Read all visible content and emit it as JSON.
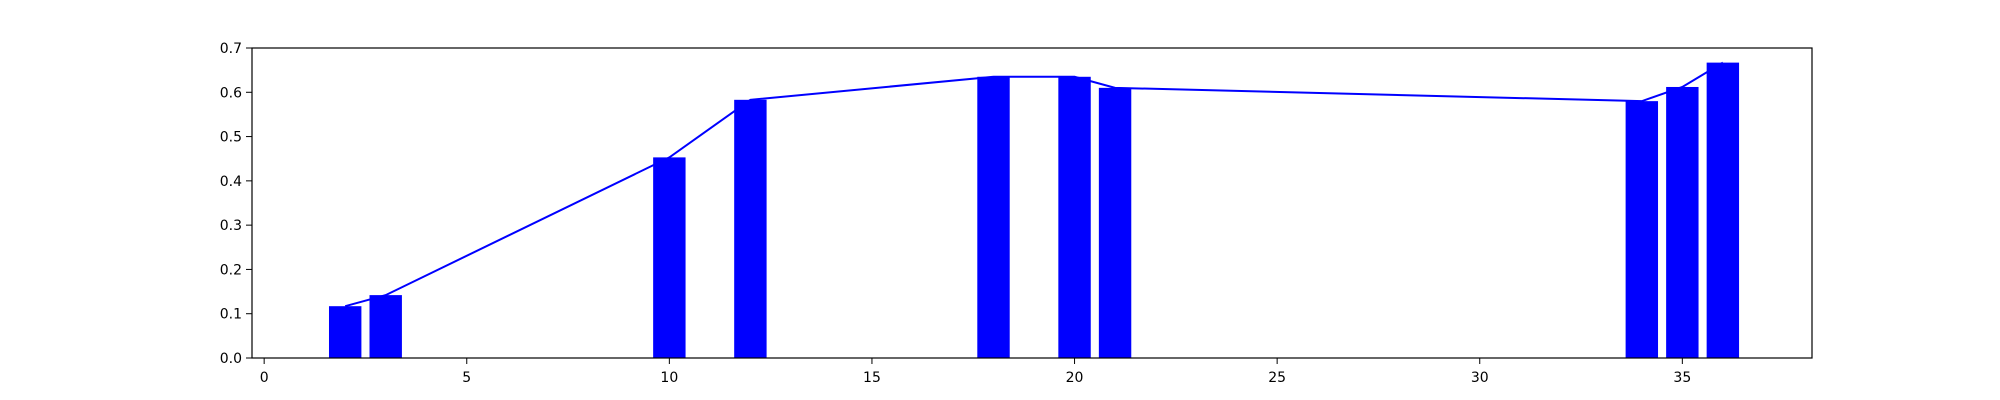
{
  "chart_data": {
    "type": "bar",
    "colors": {
      "bar": "#0000ff",
      "line": "#0000ff"
    },
    "x": [
      2,
      3,
      10,
      12,
      18,
      20,
      21,
      34,
      35,
      36
    ],
    "values": [
      0.117,
      0.142,
      0.453,
      0.583,
      0.635,
      0.635,
      0.61,
      0.58,
      0.612,
      0.667
    ],
    "line_series": {
      "x": [
        2,
        3,
        10,
        12,
        18,
        20,
        21,
        34,
        35,
        36
      ],
      "y": [
        0.117,
        0.142,
        0.453,
        0.583,
        0.635,
        0.635,
        0.61,
        0.58,
        0.612,
        0.667
      ]
    },
    "bar_width": 0.8,
    "xlim": [
      -0.3,
      38.2
    ],
    "ylim": [
      0,
      0.7
    ],
    "xticks": [
      0,
      5,
      10,
      15,
      20,
      25,
      30,
      35
    ],
    "yticks": [
      0.0,
      0.1,
      0.2,
      0.3,
      0.4,
      0.5,
      0.6,
      0.7
    ],
    "xtick_labels": [
      "0",
      "5",
      "10",
      "15",
      "20",
      "25",
      "30",
      "35"
    ],
    "ytick_labels": [
      "0.0",
      "0.1",
      "0.2",
      "0.3",
      "0.4",
      "0.5",
      "0.6",
      "0.7"
    ],
    "grid": false,
    "legend": "none"
  }
}
